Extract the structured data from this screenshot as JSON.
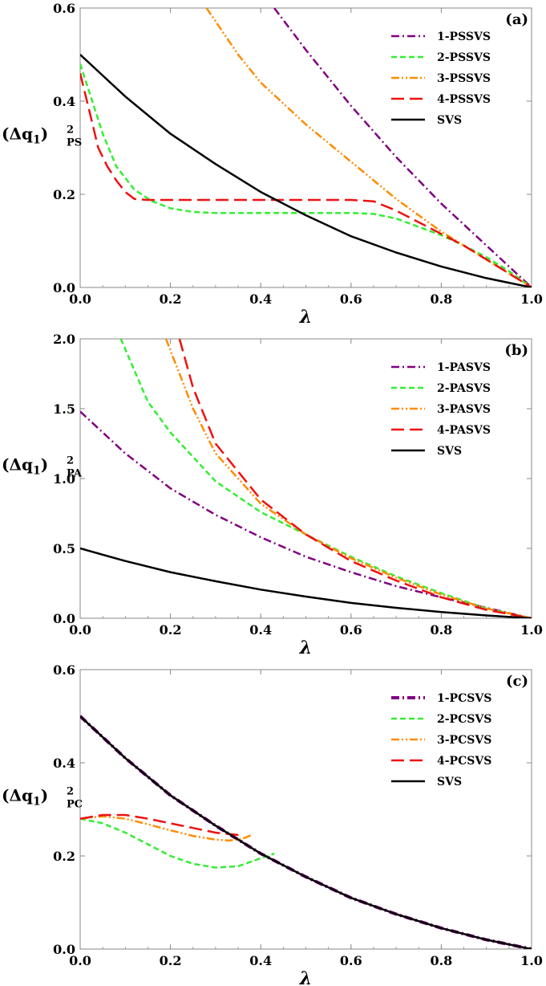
{
  "chart_data": [
    {
      "type": "line",
      "panel_label": "(a)",
      "ylabel_main": "(Δq",
      "ylabel_sub1": "1",
      "ylabel_close": ")",
      "ylabel_sup": "2",
      "ylabel_sub2": "PS",
      "xlabel": "λ",
      "xlim": [
        0,
        1
      ],
      "ylim": [
        0,
        0.6
      ],
      "xticks": [
        0.0,
        0.2,
        0.4,
        0.6,
        0.8,
        1.0
      ],
      "yticks": [
        0.0,
        0.2,
        0.4,
        0.6
      ],
      "xtick_labels": [
        "0.0",
        "0.2",
        "0.4",
        "0.6",
        "0.8",
        "1.0"
      ],
      "ytick_labels": [
        "0.0",
        "0.2",
        "0.4",
        "0.6"
      ],
      "legend_position": "top-right",
      "series": [
        {
          "name": "1-PSSVS",
          "color": "#800080",
          "dash": "dashdot",
          "x": [
            0.43,
            0.5,
            0.6,
            0.7,
            0.8,
            0.9,
            1.0
          ],
          "y": [
            0.6,
            0.51,
            0.39,
            0.28,
            0.18,
            0.09,
            0.0
          ]
        },
        {
          "name": "2-PSSVS",
          "color": "#33ee33",
          "dash": "dash",
          "x": [
            0.0,
            0.02,
            0.05,
            0.08,
            0.12,
            0.16,
            0.2,
            0.25,
            0.3,
            0.4,
            0.5,
            0.6,
            0.65,
            0.7,
            0.75,
            0.8,
            0.85,
            0.9,
            0.95,
            1.0
          ],
          "y": [
            0.48,
            0.42,
            0.33,
            0.26,
            0.21,
            0.185,
            0.17,
            0.162,
            0.16,
            0.16,
            0.16,
            0.16,
            0.158,
            0.148,
            0.13,
            0.112,
            0.09,
            0.065,
            0.035,
            0.0
          ]
        },
        {
          "name": "3-PSSVS",
          "color": "#ff8c00",
          "dash": "dashdotdot",
          "x": [
            0.28,
            0.35,
            0.4,
            0.5,
            0.6,
            0.7,
            0.8,
            0.9,
            1.0
          ],
          "y": [
            0.6,
            0.5,
            0.44,
            0.35,
            0.27,
            0.19,
            0.12,
            0.06,
            0.0
          ]
        },
        {
          "name": "4-PSSVS",
          "color": "#ee1111",
          "dash": "longdash",
          "x": [
            0.0,
            0.02,
            0.04,
            0.06,
            0.08,
            0.1,
            0.12,
            0.15,
            0.3,
            0.5,
            0.6,
            0.65,
            0.7,
            0.75,
            0.8,
            0.85,
            0.9,
            0.95,
            1.0
          ],
          "y": [
            0.46,
            0.38,
            0.3,
            0.26,
            0.23,
            0.205,
            0.19,
            0.188,
            0.188,
            0.188,
            0.188,
            0.185,
            0.165,
            0.14,
            0.115,
            0.09,
            0.06,
            0.03,
            0.0
          ]
        },
        {
          "name": "SVS",
          "color": "#000000",
          "dash": "solid",
          "x": [
            0.0,
            0.1,
            0.2,
            0.3,
            0.4,
            0.5,
            0.6,
            0.7,
            0.8,
            0.9,
            1.0
          ],
          "y": [
            0.5,
            0.41,
            0.33,
            0.265,
            0.205,
            0.155,
            0.11,
            0.075,
            0.045,
            0.02,
            0.0
          ]
        }
      ]
    },
    {
      "type": "line",
      "panel_label": "(b)",
      "ylabel_main": "(Δq",
      "ylabel_sub1": "1",
      "ylabel_close": ")",
      "ylabel_sup": "2",
      "ylabel_sub2": "PA",
      "xlabel": "λ",
      "xlim": [
        0,
        1
      ],
      "ylim": [
        0,
        2.0
      ],
      "xticks": [
        0.0,
        0.2,
        0.4,
        0.6,
        0.8,
        1.0
      ],
      "yticks": [
        0.0,
        0.5,
        1.0,
        1.5,
        2.0
      ],
      "xtick_labels": [
        "0.0",
        "0.2",
        "0.4",
        "0.6",
        "0.8",
        "1.0"
      ],
      "ytick_labels": [
        "0.0",
        "0.5",
        "1.0",
        "1.5",
        "2.0"
      ],
      "legend_position": "top-right",
      "series": [
        {
          "name": "1-PASVS",
          "color": "#800080",
          "dash": "dashdot",
          "x": [
            0.0,
            0.1,
            0.2,
            0.3,
            0.4,
            0.5,
            0.6,
            0.7,
            0.8,
            0.9,
            1.0
          ],
          "y": [
            1.48,
            1.18,
            0.93,
            0.74,
            0.58,
            0.44,
            0.33,
            0.23,
            0.15,
            0.075,
            0.0
          ]
        },
        {
          "name": "2-PASVS",
          "color": "#33ee33",
          "dash": "dash",
          "x": [
            0.09,
            0.15,
            0.2,
            0.3,
            0.4,
            0.5,
            0.6,
            0.7,
            0.8,
            0.9,
            1.0
          ],
          "y": [
            2.0,
            1.55,
            1.33,
            0.98,
            0.76,
            0.6,
            0.44,
            0.3,
            0.18,
            0.07,
            0.0
          ]
        },
        {
          "name": "3-PASVS",
          "color": "#ff8c00",
          "dash": "dashdotdot",
          "x": [
            0.19,
            0.25,
            0.3,
            0.4,
            0.5,
            0.6,
            0.7,
            0.8,
            0.9,
            1.0
          ],
          "y": [
            2.0,
            1.5,
            1.18,
            0.82,
            0.6,
            0.43,
            0.29,
            0.17,
            0.07,
            0.0
          ]
        },
        {
          "name": "4-PASVS",
          "color": "#ee1111",
          "dash": "longdash",
          "x": [
            0.22,
            0.25,
            0.3,
            0.4,
            0.5,
            0.6,
            0.7,
            0.8,
            0.9,
            1.0
          ],
          "y": [
            2.0,
            1.65,
            1.25,
            0.85,
            0.6,
            0.41,
            0.27,
            0.15,
            0.06,
            0.0
          ]
        },
        {
          "name": "SVS",
          "color": "#000000",
          "dash": "solid",
          "x": [
            0.0,
            0.1,
            0.2,
            0.3,
            0.4,
            0.5,
            0.6,
            0.7,
            0.8,
            0.9,
            1.0
          ],
          "y": [
            0.5,
            0.41,
            0.33,
            0.265,
            0.205,
            0.155,
            0.11,
            0.075,
            0.045,
            0.02,
            0.0
          ]
        }
      ]
    },
    {
      "type": "line",
      "panel_label": "(c)",
      "ylabel_main": "(Δq",
      "ylabel_sub1": "1",
      "ylabel_close": ")",
      "ylabel_sup": "2",
      "ylabel_sub2": "PC",
      "xlabel": "λ",
      "xlim": [
        0,
        1
      ],
      "ylim": [
        0,
        0.6
      ],
      "xticks": [
        0.0,
        0.2,
        0.4,
        0.6,
        0.8,
        1.0
      ],
      "yticks": [
        0.0,
        0.2,
        0.4,
        0.6
      ],
      "xtick_labels": [
        "0.0",
        "0.2",
        "0.4",
        "0.6",
        "0.8",
        "1.0"
      ],
      "ytick_labels": [
        "0.0",
        "0.2",
        "0.4",
        "0.6"
      ],
      "legend_position": "top-right",
      "series": [
        {
          "name": "1-PCSVS",
          "color": "#800080",
          "dash": "dashdot",
          "thick": true,
          "x": [
            0.0,
            0.1,
            0.2,
            0.3,
            0.4,
            0.5,
            0.6,
            0.7,
            0.8,
            0.9,
            1.0
          ],
          "y": [
            0.5,
            0.41,
            0.33,
            0.265,
            0.205,
            0.155,
            0.11,
            0.075,
            0.045,
            0.02,
            0.0
          ]
        },
        {
          "name": "2-PCSVS",
          "color": "#33ee33",
          "dash": "dash",
          "x": [
            0.0,
            0.05,
            0.1,
            0.15,
            0.2,
            0.25,
            0.3,
            0.35,
            0.4,
            0.43
          ],
          "y": [
            0.28,
            0.27,
            0.25,
            0.225,
            0.2,
            0.183,
            0.175,
            0.178,
            0.195,
            0.205
          ]
        },
        {
          "name": "3-PCSVS",
          "color": "#ff8c00",
          "dash": "dashdotdot",
          "x": [
            0.0,
            0.05,
            0.1,
            0.15,
            0.2,
            0.25,
            0.3,
            0.33,
            0.36,
            0.38
          ],
          "y": [
            0.28,
            0.285,
            0.28,
            0.268,
            0.255,
            0.243,
            0.235,
            0.233,
            0.237,
            0.245
          ]
        },
        {
          "name": "4-PCSVS",
          "color": "#ee1111",
          "dash": "longdash",
          "x": [
            0.0,
            0.05,
            0.1,
            0.15,
            0.2,
            0.25,
            0.3,
            0.35,
            0.36
          ],
          "y": [
            0.28,
            0.288,
            0.288,
            0.28,
            0.27,
            0.26,
            0.25,
            0.245,
            0.245
          ]
        },
        {
          "name": "SVS",
          "color": "#000000",
          "dash": "solid",
          "x": [
            0.0,
            0.1,
            0.2,
            0.3,
            0.4,
            0.5,
            0.6,
            0.7,
            0.8,
            0.9,
            1.0
          ],
          "y": [
            0.5,
            0.41,
            0.33,
            0.265,
            0.205,
            0.155,
            0.11,
            0.075,
            0.045,
            0.02,
            0.0
          ]
        }
      ]
    }
  ]
}
